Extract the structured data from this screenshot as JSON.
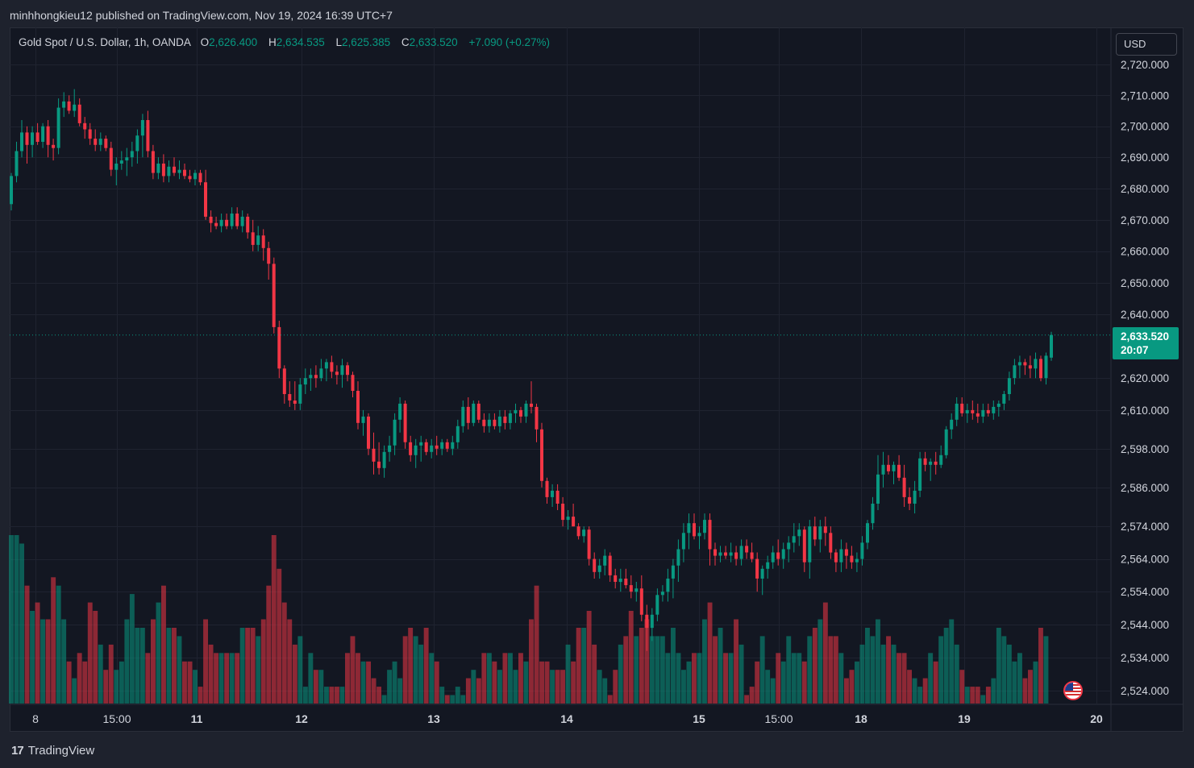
{
  "publish": {
    "text": "minhhongkieu12 published on TradingView.com, Nov 19, 2024 16:39 UTC+7"
  },
  "legend": {
    "symbol": "Gold Spot / U.S. Dollar, 1h, OANDA",
    "o_label": "O",
    "o_value": "2,626.400",
    "h_label": "H",
    "h_value": "2,634.535",
    "l_label": "L",
    "l_value": "2,625.385",
    "c_label": "C",
    "c_value": "2,633.520",
    "change": "+7.090 (+0.27%)"
  },
  "currency": "USD",
  "last_price": {
    "price": "2,633.520",
    "countdown": "20:07"
  },
  "footer": {
    "brand": "TradingView",
    "logo_mark": "17"
  },
  "colors": {
    "up": "#089981",
    "down": "#f23645",
    "background": "#131722",
    "grid": "#1f2330"
  },
  "chart_data": {
    "type": "candlestick",
    "title": "Gold Spot / U.S. Dollar, 1h, OANDA",
    "x_tick_labels": [
      "8",
      "15:00",
      "11",
      "12",
      "13",
      "14",
      "15",
      "15:00",
      "18",
      "19",
      "20"
    ],
    "y_tick_labels": [
      "2,720.000",
      "2,710.000",
      "2,700.000",
      "2,690.000",
      "2,680.000",
      "2,670.000",
      "2,660.000",
      "2,650.000",
      "2,640.000",
      "2,620.000",
      "2,610.000",
      "2,598.000",
      "2,586.000",
      "2,574.000",
      "2,564.000",
      "2,554.000",
      "2,544.000",
      "2,534.000",
      "2,524.000"
    ],
    "y_ticks": [
      2720,
      2710,
      2700,
      2690,
      2680,
      2670,
      2660,
      2650,
      2640,
      2620,
      2610,
      2598,
      2586,
      2574,
      2564,
      2554,
      2544,
      2534,
      2524
    ],
    "y_scale": "log",
    "ylim": [
      2521,
      2723
    ],
    "last_close": 2633.52,
    "grid": true,
    "volume_panel": true,
    "ohlc": [
      [
        2675,
        2685,
        2673,
        2684
      ],
      [
        2684,
        2695,
        2682,
        2692
      ],
      [
        2692,
        2702,
        2690,
        2698
      ],
      [
        2698,
        2700,
        2688,
        2694
      ],
      [
        2694,
        2700,
        2690,
        2698
      ],
      [
        2698,
        2701,
        2694,
        2695
      ],
      [
        2695,
        2701,
        2693,
        2700
      ],
      [
        2700,
        2702,
        2690,
        2694
      ],
      [
        2694,
        2696,
        2689,
        2693
      ],
      [
        2693,
        2709,
        2691,
        2706
      ],
      [
        2706,
        2711,
        2703,
        2708
      ],
      [
        2708,
        2710,
        2704,
        2705
      ],
      [
        2705,
        2712,
        2703,
        2707
      ],
      [
        2707,
        2709,
        2700,
        2701
      ],
      [
        2701,
        2703,
        2696,
        2699
      ],
      [
        2699,
        2701,
        2694,
        2696
      ],
      [
        2696,
        2699,
        2692,
        2694
      ],
      [
        2694,
        2698,
        2692,
        2696
      ],
      [
        2696,
        2697,
        2692,
        2693
      ],
      [
        2693,
        2695,
        2684,
        2686
      ],
      [
        2686,
        2690,
        2681,
        2688
      ],
      [
        2688,
        2692,
        2686,
        2689
      ],
      [
        2689,
        2693,
        2684,
        2690
      ],
      [
        2690,
        2695,
        2687,
        2692
      ],
      [
        2692,
        2699,
        2688,
        2697
      ],
      [
        2697,
        2704,
        2690,
        2702
      ],
      [
        2702,
        2705,
        2690,
        2692
      ],
      [
        2692,
        2694,
        2683,
        2685
      ],
      [
        2685,
        2690,
        2683,
        2688
      ],
      [
        2688,
        2691,
        2682,
        2684
      ],
      [
        2684,
        2689,
        2682,
        2687
      ],
      [
        2687,
        2690,
        2684,
        2685
      ],
      [
        2685,
        2689,
        2683,
        2686
      ],
      [
        2686,
        2688,
        2683,
        2684
      ],
      [
        2684,
        2686,
        2682,
        2683
      ],
      [
        2683,
        2686,
        2681,
        2685
      ],
      [
        2685,
        2686,
        2681,
        2682
      ],
      [
        2682,
        2686,
        2670,
        2671
      ],
      [
        2671,
        2673,
        2666,
        2669
      ],
      [
        2669,
        2671,
        2667,
        2668
      ],
      [
        2668,
        2672,
        2666,
        2670
      ],
      [
        2670,
        2672,
        2667,
        2668
      ],
      [
        2668,
        2674,
        2667,
        2672
      ],
      [
        2672,
        2674,
        2667,
        2668
      ],
      [
        2668,
        2673,
        2666,
        2671
      ],
      [
        2671,
        2672,
        2664,
        2666
      ],
      [
        2666,
        2670,
        2660,
        2662
      ],
      [
        2662,
        2668,
        2660,
        2665
      ],
      [
        2665,
        2667,
        2657,
        2661
      ],
      [
        2661,
        2663,
        2651,
        2656
      ],
      [
        2656,
        2658,
        2634,
        2636
      ],
      [
        2636,
        2638,
        2620,
        2623
      ],
      [
        2623,
        2624,
        2612,
        2615
      ],
      [
        2615,
        2619,
        2611,
        2613
      ],
      [
        2613,
        2619,
        2610,
        2612
      ],
      [
        2612,
        2620,
        2610,
        2618
      ],
      [
        2618,
        2623,
        2615,
        2620
      ],
      [
        2620,
        2623,
        2616,
        2621
      ],
      [
        2621,
        2624,
        2617,
        2620
      ],
      [
        2620,
        2626,
        2619,
        2623
      ],
      [
        2623,
        2626,
        2619,
        2625
      ],
      [
        2625,
        2627,
        2620,
        2622
      ],
      [
        2622,
        2624,
        2618,
        2621
      ],
      [
        2621,
        2626,
        2617,
        2624
      ],
      [
        2624,
        2625,
        2619,
        2621
      ],
      [
        2621,
        2622,
        2614,
        2616
      ],
      [
        2616,
        2619,
        2604,
        2606
      ],
      [
        2606,
        2610,
        2602,
        2608
      ],
      [
        2608,
        2609,
        2596,
        2598
      ],
      [
        2598,
        2603,
        2590,
        2594
      ],
      [
        2594,
        2600,
        2590,
        2592
      ],
      [
        2592,
        2599,
        2589,
        2597
      ],
      [
        2597,
        2602,
        2594,
        2599
      ],
      [
        2599,
        2609,
        2596,
        2607
      ],
      [
        2607,
        2614,
        2603,
        2612
      ],
      [
        2612,
        2613,
        2598,
        2600
      ],
      [
        2600,
        2602,
        2594,
        2596
      ],
      [
        2596,
        2601,
        2592,
        2599
      ],
      [
        2599,
        2602,
        2594,
        2600
      ],
      [
        2600,
        2601,
        2596,
        2597
      ],
      [
        2597,
        2601,
        2595,
        2599
      ],
      [
        2599,
        2602,
        2596,
        2598
      ],
      [
        2598,
        2601,
        2596,
        2600
      ],
      [
        2600,
        2601,
        2597,
        2598
      ],
      [
        2598,
        2602,
        2596,
        2600
      ],
      [
        2600,
        2607,
        2598,
        2605
      ],
      [
        2605,
        2613,
        2603,
        2611
      ],
      [
        2611,
        2614,
        2604,
        2606
      ],
      [
        2606,
        2613,
        2605,
        2612
      ],
      [
        2612,
        2613,
        2606,
        2607
      ],
      [
        2607,
        2609,
        2603,
        2605
      ],
      [
        2605,
        2609,
        2603,
        2607
      ],
      [
        2607,
        2609,
        2604,
        2605
      ],
      [
        2605,
        2610,
        2603,
        2608
      ],
      [
        2608,
        2610,
        2604,
        2606
      ],
      [
        2606,
        2610,
        2604,
        2609
      ],
      [
        2609,
        2612,
        2606,
        2610
      ],
      [
        2610,
        2611,
        2606,
        2608
      ],
      [
        2608,
        2613,
        2606,
        2612
      ],
      [
        2612,
        2619,
        2609,
        2611
      ],
      [
        2611,
        2612,
        2600,
        2604
      ],
      [
        2604,
        2606,
        2586,
        2588
      ],
      [
        2588,
        2589,
        2581,
        2583
      ],
      [
        2583,
        2587,
        2580,
        2585
      ],
      [
        2585,
        2587,
        2579,
        2581
      ],
      [
        2581,
        2583,
        2574,
        2576
      ],
      [
        2576,
        2579,
        2573,
        2577
      ],
      [
        2577,
        2581,
        2574,
        2574
      ],
      [
        2574,
        2575,
        2570,
        2571
      ],
      [
        2571,
        2574,
        2569,
        2573
      ],
      [
        2573,
        2574,
        2562,
        2564
      ],
      [
        2564,
        2566,
        2558,
        2560
      ],
      [
        2560,
        2564,
        2558,
        2562
      ],
      [
        2562,
        2567,
        2559,
        2565
      ],
      [
        2565,
        2566,
        2557,
        2559
      ],
      [
        2559,
        2561,
        2555,
        2557
      ],
      [
        2557,
        2561,
        2554,
        2558
      ],
      [
        2558,
        2561,
        2555,
        2556
      ],
      [
        2556,
        2559,
        2552,
        2554
      ],
      [
        2554,
        2557,
        2551,
        2555
      ],
      [
        2555,
        2559,
        2545,
        2547
      ],
      [
        2547,
        2550,
        2536,
        2543
      ],
      [
        2543,
        2549,
        2539,
        2547
      ],
      [
        2547,
        2555,
        2545,
        2553
      ],
      [
        2553,
        2556,
        2551,
        2554
      ],
      [
        2554,
        2561,
        2551,
        2558
      ],
      [
        2558,
        2564,
        2552,
        2562
      ],
      [
        2562,
        2570,
        2557,
        2567
      ],
      [
        2567,
        2575,
        2563,
        2572
      ],
      [
        2572,
        2578,
        2567,
        2575
      ],
      [
        2575,
        2578,
        2570,
        2571
      ],
      [
        2571,
        2574,
        2567,
        2572
      ],
      [
        2572,
        2578,
        2570,
        2576
      ],
      [
        2576,
        2578,
        2562,
        2567
      ],
      [
        2567,
        2569,
        2562,
        2565
      ],
      [
        2565,
        2568,
        2563,
        2566
      ],
      [
        2566,
        2568,
        2564,
        2565
      ],
      [
        2565,
        2569,
        2563,
        2566
      ],
      [
        2566,
        2568,
        2562,
        2564
      ],
      [
        2564,
        2570,
        2562,
        2568
      ],
      [
        2568,
        2570,
        2564,
        2566
      ],
      [
        2566,
        2569,
        2563,
        2564
      ],
      [
        2564,
        2566,
        2554,
        2558
      ],
      [
        2558,
        2562,
        2553,
        2561
      ],
      [
        2561,
        2565,
        2558,
        2563
      ],
      [
        2563,
        2568,
        2561,
        2566
      ],
      [
        2566,
        2570,
        2562,
        2564
      ],
      [
        2564,
        2569,
        2561,
        2567
      ],
      [
        2567,
        2571,
        2563,
        2569
      ],
      [
        2569,
        2575,
        2566,
        2571
      ],
      [
        2571,
        2575,
        2568,
        2573
      ],
      [
        2573,
        2574,
        2560,
        2563
      ],
      [
        2563,
        2576,
        2558,
        2574
      ],
      [
        2574,
        2577,
        2568,
        2570
      ],
      [
        2570,
        2576,
        2566,
        2574
      ],
      [
        2574,
        2577,
        2568,
        2572
      ],
      [
        2572,
        2574,
        2564,
        2566
      ],
      [
        2566,
        2567,
        2560,
        2563
      ],
      [
        2563,
        2570,
        2560,
        2567
      ],
      [
        2567,
        2569,
        2561,
        2565
      ],
      [
        2565,
        2568,
        2561,
        2563
      ],
      [
        2563,
        2566,
        2560,
        2564
      ],
      [
        2564,
        2571,
        2562,
        2569
      ],
      [
        2569,
        2576,
        2567,
        2575
      ],
      [
        2575,
        2583,
        2573,
        2581
      ],
      [
        2581,
        2596,
        2579,
        2590
      ],
      [
        2590,
        2597,
        2586,
        2593
      ],
      [
        2593,
        2596,
        2590,
        2591
      ],
      [
        2591,
        2594,
        2587,
        2593
      ],
      [
        2593,
        2596,
        2588,
        2589
      ],
      [
        2589,
        2593,
        2580,
        2583
      ],
      [
        2583,
        2586,
        2579,
        2581
      ],
      [
        2581,
        2588,
        2578,
        2585
      ],
      [
        2585,
        2597,
        2583,
        2595
      ],
      [
        2595,
        2597,
        2591,
        2593
      ],
      [
        2593,
        2595,
        2588,
        2594
      ],
      [
        2594,
        2597,
        2590,
        2593
      ],
      [
        2593,
        2599,
        2592,
        2596
      ],
      [
        2596,
        2605,
        2595,
        2604
      ],
      [
        2604,
        2609,
        2601,
        2607
      ],
      [
        2607,
        2614,
        2605,
        2612
      ],
      [
        2612,
        2614,
        2608,
        2609
      ],
      [
        2609,
        2612,
        2606,
        2610
      ],
      [
        2610,
        2613,
        2607,
        2609
      ],
      [
        2609,
        2612,
        2606,
        2608
      ],
      [
        2608,
        2612,
        2606,
        2610
      ],
      [
        2610,
        2612,
        2608,
        2609
      ],
      [
        2609,
        2613,
        2607,
        2611
      ],
      [
        2611,
        2613,
        2608,
        2612
      ],
      [
        2612,
        2616,
        2610,
        2615
      ],
      [
        2615,
        2622,
        2613,
        2620
      ],
      [
        2620,
        2626,
        2618,
        2624
      ],
      [
        2624,
        2627,
        2620,
        2625
      ],
      [
        2625,
        2626,
        2621,
        2624
      ],
      [
        2624,
        2627,
        2620,
        2623
      ],
      [
        2623,
        2628,
        2620,
        2626
      ],
      [
        2626,
        2627,
        2619,
        2620
      ],
      [
        2620,
        2628,
        2618,
        2627
      ],
      [
        2626.4,
        2634.535,
        2625.385,
        2633.52
      ]
    ],
    "volume": [
      100,
      100,
      95,
      70,
      55,
      60,
      50,
      50,
      75,
      70,
      50,
      25,
      15,
      30,
      25,
      60,
      55,
      35,
      20,
      35,
      20,
      25,
      50,
      65,
      45,
      45,
      30,
      50,
      60,
      70,
      45,
      45,
      40,
      25,
      25,
      20,
      10,
      50,
      35,
      30,
      30,
      30,
      30,
      30,
      45,
      45,
      45,
      40,
      50,
      70,
      100,
      80,
      60,
      50,
      35,
      40,
      10,
      30,
      20,
      20,
      10,
      10,
      10,
      10,
      30,
      40,
      30,
      25,
      25,
      15,
      10,
      5,
      20,
      25,
      15,
      40,
      45,
      40,
      35,
      45,
      30,
      25,
      10,
      5,
      5,
      10,
      5,
      15,
      20,
      15,
      30,
      30,
      25,
      20,
      30,
      30,
      20,
      30,
      25,
      50,
      70,
      25,
      25,
      20,
      20,
      20,
      35,
      25,
      45,
      45,
      55,
      35,
      20,
      15,
      5,
      20,
      35,
      40,
      55,
      40,
      45,
      50,
      40,
      40,
      40,
      30,
      45,
      30,
      20,
      25,
      30,
      30,
      50,
      60,
      40,
      45,
      30,
      30,
      50,
      35,
      5,
      10,
      25,
      40,
      20,
      15,
      30,
      25,
      40,
      30,
      30,
      25,
      40,
      45,
      50,
      60,
      40,
      40,
      30,
      15,
      20,
      25,
      35,
      45,
      40,
      50,
      35,
      40,
      35,
      30,
      30,
      20,
      15,
      10,
      15,
      30,
      25,
      40,
      45,
      50,
      35,
      20,
      10,
      10,
      10,
      5,
      10,
      15,
      45,
      40,
      35,
      25,
      30,
      15,
      20,
      25,
      45,
      40
    ]
  }
}
